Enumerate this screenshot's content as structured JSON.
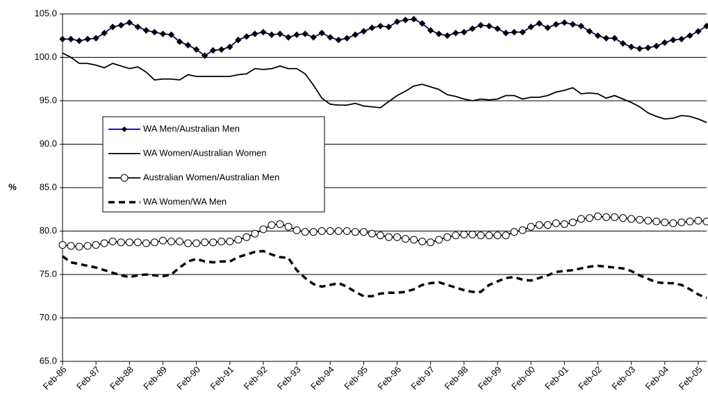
{
  "chart_data": {
    "type": "line",
    "ylabel": "%",
    "ylim": [
      65,
      105
    ],
    "yticks": [
      {
        "value": 65,
        "label": "65.0"
      },
      {
        "value": 70,
        "label": "70.0"
      },
      {
        "value": 75,
        "label": "75.0"
      },
      {
        "value": 80,
        "label": "80.0"
      },
      {
        "value": 85,
        "label": "85.0"
      },
      {
        "value": 90,
        "label": "90.0"
      },
      {
        "value": 95,
        "label": "95.0"
      },
      {
        "value": 100,
        "label": "100.0"
      },
      {
        "value": 105,
        "label": "105.0"
      }
    ],
    "grid": true,
    "legend": "left",
    "categories": [
      "Feb-86",
      null,
      null,
      null,
      "Feb-87",
      null,
      null,
      null,
      "Feb-88",
      null,
      null,
      null,
      "Feb-89",
      null,
      null,
      null,
      "Feb-90",
      null,
      null,
      null,
      "Feb-91",
      null,
      null,
      null,
      "Feb-92",
      null,
      null,
      null,
      "Feb-93",
      null,
      null,
      null,
      "Feb-94",
      null,
      null,
      null,
      "Feb-95",
      null,
      null,
      null,
      "Feb-96",
      null,
      null,
      null,
      "Feb-97",
      null,
      null,
      null,
      "Feb-98",
      null,
      null,
      null,
      "Feb-99",
      null,
      null,
      null,
      "Feb-00",
      null,
      null,
      null,
      "Feb-01",
      null,
      null,
      null,
      "Feb-02",
      null,
      null,
      null,
      "Feb-03",
      null,
      null,
      null,
      "Feb-04",
      null,
      null,
      null,
      "Feb-05",
      null
    ],
    "series": [
      {
        "name": "WA Men/Australian Men",
        "color": "#000080",
        "marker": "diamond",
        "marker_color": "#000000",
        "dash": "solid",
        "values": [
          102.1,
          102.1,
          101.9,
          102.1,
          102.2,
          102.8,
          103.5,
          103.7,
          104.0,
          103.5,
          103.1,
          102.9,
          102.7,
          102.6,
          101.8,
          101.4,
          100.9,
          100.2,
          100.8,
          100.9,
          101.2,
          102.0,
          102.4,
          102.7,
          102.9,
          102.6,
          102.7,
          102.3,
          102.6,
          102.7,
          102.3,
          102.8,
          102.3,
          102.0,
          102.2,
          102.6,
          103.0,
          103.4,
          103.6,
          103.5,
          104.1,
          104.3,
          104.4,
          103.9,
          103.1,
          102.7,
          102.5,
          102.8,
          102.9,
          103.3,
          103.7,
          103.6,
          103.3,
          102.8,
          102.9,
          102.9,
          103.5,
          103.9,
          103.4,
          103.8,
          104.0,
          103.8,
          103.6,
          103.0,
          102.5,
          102.2,
          102.2,
          101.6,
          101.2,
          101.0,
          101.1,
          101.3,
          101.7,
          102.0,
          102.1,
          102.5,
          103.0,
          103.6
        ]
      },
      {
        "name": "WA Women/Australian Women",
        "color": "#000000",
        "marker": "none",
        "dash": "solid",
        "values": [
          100.5,
          100.0,
          99.3,
          99.3,
          99.1,
          98.8,
          99.3,
          99.0,
          98.7,
          98.9,
          98.3,
          97.4,
          97.5,
          97.5,
          97.4,
          98.0,
          97.8,
          97.8,
          97.8,
          97.8,
          97.8,
          98.0,
          98.1,
          98.7,
          98.6,
          98.7,
          99.0,
          98.7,
          98.7,
          98.1,
          96.8,
          95.3,
          94.6,
          94.5,
          94.5,
          94.7,
          94.4,
          94.3,
          94.2,
          94.9,
          95.6,
          96.1,
          96.7,
          96.9,
          96.6,
          96.3,
          95.7,
          95.5,
          95.2,
          95.0,
          95.2,
          95.1,
          95.2,
          95.6,
          95.6,
          95.2,
          95.4,
          95.4,
          95.6,
          96.0,
          96.2,
          96.5,
          95.8,
          95.9,
          95.8,
          95.3,
          95.6,
          95.2,
          94.8,
          94.3,
          93.6,
          93.2,
          92.9,
          93.0,
          93.3,
          93.2,
          92.9,
          92.5
        ]
      },
      {
        "name": "Australian Women/Australian Men",
        "color": "#000000",
        "marker": "circle",
        "marker_color": "#ffffff",
        "dash": "solid",
        "values": [
          78.4,
          78.3,
          78.2,
          78.3,
          78.4,
          78.6,
          78.8,
          78.7,
          78.7,
          78.7,
          78.6,
          78.7,
          78.9,
          78.8,
          78.8,
          78.6,
          78.6,
          78.7,
          78.7,
          78.8,
          78.8,
          79.0,
          79.3,
          79.7,
          80.2,
          80.7,
          80.8,
          80.5,
          80.1,
          79.9,
          79.9,
          80.0,
          80.0,
          80.0,
          80.0,
          79.9,
          79.9,
          79.7,
          79.5,
          79.3,
          79.3,
          79.1,
          79.0,
          78.8,
          78.7,
          79.0,
          79.3,
          79.5,
          79.6,
          79.6,
          79.5,
          79.5,
          79.5,
          79.5,
          79.9,
          80.1,
          80.5,
          80.7,
          80.7,
          80.9,
          80.8,
          81.0,
          81.4,
          81.5,
          81.7,
          81.6,
          81.6,
          81.5,
          81.4,
          81.3,
          81.2,
          81.1,
          81.0,
          80.9,
          81.0,
          81.1,
          81.2,
          81.1
        ]
      },
      {
        "name": "WA Women/WA Men",
        "color": "#000000",
        "marker": "none",
        "dash": "dashed",
        "values": [
          77.1,
          76.4,
          76.2,
          76.0,
          75.8,
          75.5,
          75.2,
          74.9,
          74.7,
          74.9,
          75.0,
          74.9,
          74.8,
          75.0,
          75.8,
          76.5,
          76.8,
          76.5,
          76.4,
          76.5,
          76.5,
          77.0,
          77.3,
          77.6,
          77.7,
          77.3,
          77.0,
          76.9,
          75.5,
          74.6,
          73.9,
          73.6,
          73.8,
          74.0,
          73.6,
          73.0,
          72.5,
          72.5,
          72.8,
          72.9,
          72.9,
          73.0,
          73.3,
          73.8,
          74.0,
          74.1,
          73.8,
          73.5,
          73.2,
          73.0,
          73.0,
          73.8,
          74.2,
          74.6,
          74.7,
          74.4,
          74.3,
          74.6,
          74.9,
          75.3,
          75.4,
          75.5,
          75.7,
          75.9,
          76.0,
          75.9,
          75.8,
          75.7,
          75.4,
          74.9,
          74.5,
          74.1,
          74.0,
          74.0,
          73.8,
          73.3,
          72.7,
          72.3
        ]
      }
    ]
  }
}
